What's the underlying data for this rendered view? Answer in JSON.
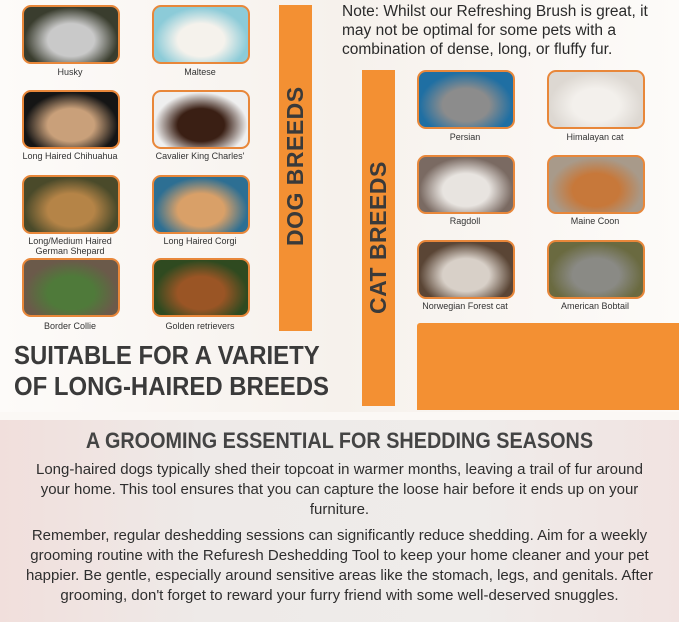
{
  "dogs": {
    "title": "DOG BREEDS",
    "items": [
      {
        "label": "Husky",
        "colors": [
          "#3a3d2e",
          "#c9c9c9"
        ]
      },
      {
        "label": "Maltese",
        "colors": [
          "#8ccbd8",
          "#f5f2ec"
        ]
      },
      {
        "label": "Long Haired Chihuahua",
        "colors": [
          "#151515",
          "#c9a07a"
        ]
      },
      {
        "label": "Cavalier King Charles'",
        "colors": [
          "#efefef",
          "#3a1f14"
        ]
      },
      {
        "label": "Long/Medium Haired German Shepard",
        "colors": [
          "#4a4a2a",
          "#b58447"
        ]
      },
      {
        "label": "Long Haired Corgi",
        "colors": [
          "#2d6f93",
          "#d9a068"
        ]
      },
      {
        "label": "Border Collie",
        "colors": [
          "#6b5a4a",
          "#4f7a3a"
        ]
      },
      {
        "label": "Golden retrievers",
        "colors": [
          "#2f4a20",
          "#9a5525"
        ]
      }
    ]
  },
  "cats": {
    "title": "CAT BREEDS",
    "items": [
      {
        "label": "Persian",
        "colors": [
          "#1f6fa3",
          "#8c8c8c"
        ]
      },
      {
        "label": "Himalayan cat",
        "colors": [
          "#ddd8d2",
          "#f3f0ec"
        ]
      },
      {
        "label": "Ragdoll",
        "colors": [
          "#7a6a62",
          "#e8e4e0"
        ]
      },
      {
        "label": "Maine Coon",
        "colors": [
          "#a89a8a",
          "#c7783a"
        ]
      },
      {
        "label": "Norwegian Forest cat",
        "colors": [
          "#5a4535",
          "#d8d0c8"
        ]
      },
      {
        "label": "American Bobtail",
        "colors": [
          "#6a6a40",
          "#8a8a85"
        ]
      }
    ]
  },
  "note": "Note: Whilst our Refreshing Brush is great, it may not be optimal for some pets with a combination of dense, long, or fluffy fur.",
  "headline": {
    "line1": "SUITABLE FOR A VARIETY",
    "line2": "OF LONG-HAIRED BREEDS"
  },
  "section": {
    "title": "A GROOMING ESSENTIAL FOR SHEDDING SEASONS",
    "paragraph1": "Long-haired dogs typically shed their topcoat in warmer months, leaving a trail of fur around your home. This tool ensures that you can capture the loose hair before it ends up on your furniture.",
    "paragraph2": "Remember, regular deshedding sessions can significantly reduce shedding. Aim for a weekly grooming routine with the Refuresh Deshedding Tool to keep your home cleaner and your pet happier. Be gentle, especially around sensitive areas like the stomach, legs, and genitals. After grooming, don't forget to reward your furry friend with some well-deserved snuggles."
  },
  "colors": {
    "accent": "#f39033",
    "frame": "#e8873a",
    "text": "#3a3a3a"
  }
}
